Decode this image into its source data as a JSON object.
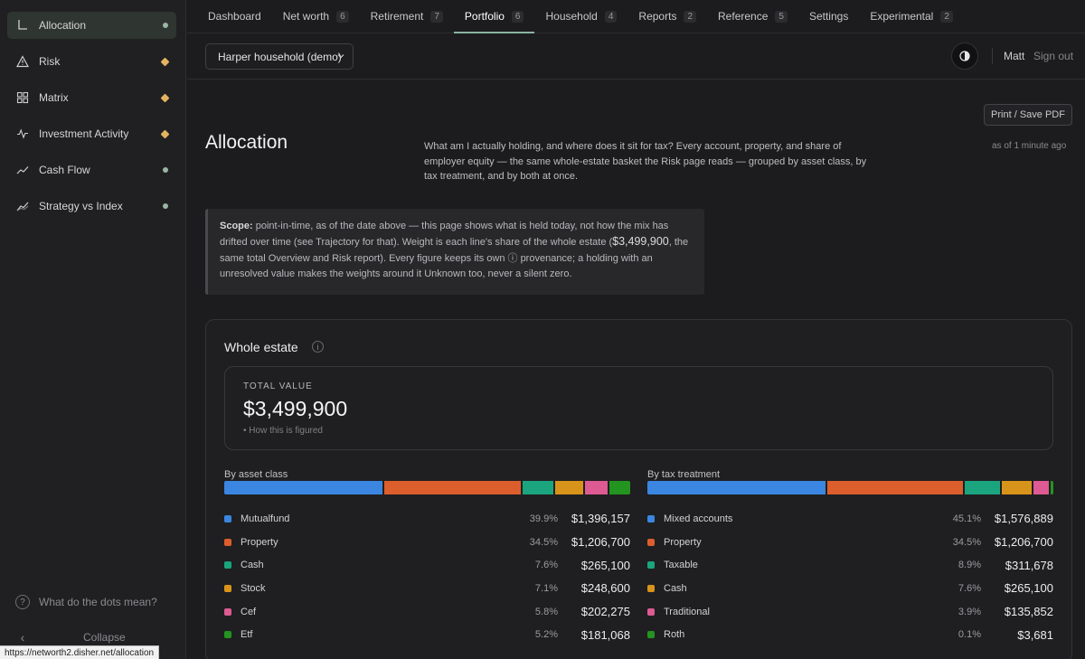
{
  "colors": {
    "blue": "#3a86e0",
    "orange": "#dc5e2c",
    "green": "#1aa57f",
    "amber": "#d8941a",
    "pink": "#dd5a92",
    "darkgreen": "#23941f"
  },
  "sidebar": {
    "items": [
      {
        "label": "Allocation",
        "icon": "allocation-icon",
        "status": "green"
      },
      {
        "label": "Risk",
        "icon": "warning-triangle-icon",
        "status": "amber"
      },
      {
        "label": "Matrix",
        "icon": "grid-icon",
        "status": "amber"
      },
      {
        "label": "Investment Activity",
        "icon": "activity-icon",
        "status": "amber"
      },
      {
        "label": "Cash Flow",
        "icon": "trend-line-icon",
        "status": "green"
      },
      {
        "label": "Strategy vs Index",
        "icon": "compare-lines-icon",
        "status": "green"
      }
    ],
    "help_label": "What do the dots mean?",
    "collapse_label": "Collapse"
  },
  "status_url": "https://networth2.disher.net/allocation",
  "nav": {
    "tabs": [
      {
        "label": "Dashboard",
        "badge": ""
      },
      {
        "label": "Net worth",
        "badge": "6"
      },
      {
        "label": "Retirement",
        "badge": "7"
      },
      {
        "label": "Portfolio",
        "badge": "6"
      },
      {
        "label": "Household",
        "badge": "4"
      },
      {
        "label": "Reports",
        "badge": "2"
      },
      {
        "label": "Reference",
        "badge": "5"
      },
      {
        "label": "Settings",
        "badge": ""
      },
      {
        "label": "Experimental",
        "badge": "2"
      }
    ],
    "active": "Portfolio"
  },
  "header": {
    "household": "Harper household (demo)",
    "user": "Matt",
    "signout": "Sign out"
  },
  "page": {
    "print_label": "Print / Save PDF",
    "title": "Allocation",
    "description": "What am I actually holding, and where does it sit for tax? Every account, property, and share of employer equity — the same whole-estate basket the Risk page reads — grouped by asset class, by tax treatment, and by both at once.",
    "as_of": "as of 1 minute ago",
    "scope": {
      "label": "Scope:",
      "text_before": "point-in-time, as of the date above — this page shows what is held today, not how the mix has drifted over time (see Trajectory for that). Weight is each line's share of the whole estate (",
      "amount": "$3,499,900",
      "text_after": ", the same total Overview and Risk report). Every figure keeps its own ⓘ provenance; a holding with an unresolved value makes the weights around it Unknown too, never a silent zero."
    }
  },
  "estate": {
    "title": "Whole estate",
    "total_label": "TOTAL VALUE",
    "total_value": "$3,499,900",
    "how_label": "• How this is figured",
    "by_asset_class": {
      "label": "By asset class",
      "rows": [
        {
          "name": "Mutualfund",
          "pct": "39.9%",
          "amount": "$1,396,157",
          "share": 39.9,
          "color": "#3a86e0"
        },
        {
          "name": "Property",
          "pct": "34.5%",
          "amount": "$1,206,700",
          "share": 34.5,
          "color": "#dc5e2c"
        },
        {
          "name": "Cash",
          "pct": "7.6%",
          "amount": "$265,100",
          "share": 7.6,
          "color": "#1aa57f"
        },
        {
          "name": "Stock",
          "pct": "7.1%",
          "amount": "$248,600",
          "share": 7.1,
          "color": "#d8941a"
        },
        {
          "name": "Cef",
          "pct": "5.8%",
          "amount": "$202,275",
          "share": 5.8,
          "color": "#dd5a92"
        },
        {
          "name": "Etf",
          "pct": "5.2%",
          "amount": "$181,068",
          "share": 5.2,
          "color": "#23941f"
        }
      ]
    },
    "by_tax_treatment": {
      "label": "By tax treatment",
      "rows": [
        {
          "name": "Mixed accounts",
          "pct": "45.1%",
          "amount": "$1,576,889",
          "share": 45.1,
          "color": "#3a86e0"
        },
        {
          "name": "Property",
          "pct": "34.5%",
          "amount": "$1,206,700",
          "share": 34.5,
          "color": "#dc5e2c"
        },
        {
          "name": "Taxable",
          "pct": "8.9%",
          "amount": "$311,678",
          "share": 8.9,
          "color": "#1aa57f"
        },
        {
          "name": "Cash",
          "pct": "7.6%",
          "amount": "$265,100",
          "share": 7.6,
          "color": "#d8941a"
        },
        {
          "name": "Traditional",
          "pct": "3.9%",
          "amount": "$135,852",
          "share": 3.9,
          "color": "#dd5a92"
        },
        {
          "name": "Roth",
          "pct": "0.1%",
          "amount": "$3,681",
          "share": 0.1,
          "color": "#23941f"
        }
      ]
    }
  }
}
